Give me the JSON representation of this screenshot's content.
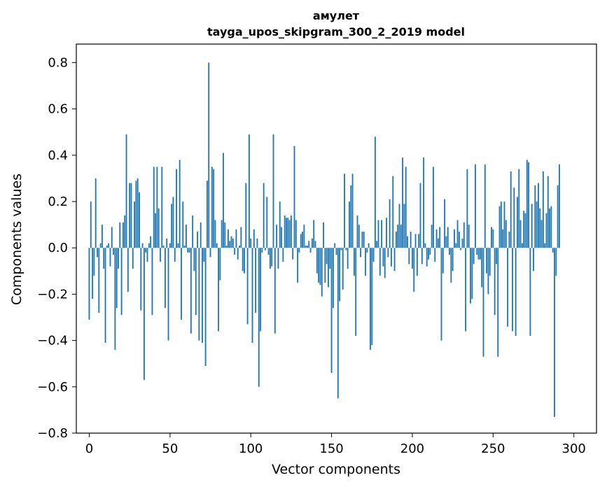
{
  "chart_data": {
    "type": "bar",
    "title": "амулет",
    "subtitle": "tayga_upos_skipgram_300_2_2019 model",
    "xlabel": "Vector components",
    "ylabel": "Components values",
    "xlim": [
      -8,
      314
    ],
    "ylim": [
      -0.8,
      0.88
    ],
    "xticks": [
      0,
      50,
      100,
      150,
      200,
      250,
      300
    ],
    "yticks": [
      -0.8,
      -0.6,
      -0.4,
      -0.2,
      0.0,
      0.2,
      0.4,
      0.6,
      0.8
    ],
    "ytick_labels": [
      "−0.8",
      "−0.6",
      "−0.4",
      "−0.2",
      "0.0",
      "0.2",
      "0.4",
      "0.6",
      "0.8"
    ],
    "bar_color": "#1f77b4",
    "grid": false,
    "values": [
      -0.31,
      0.2,
      -0.22,
      -0.12,
      0.3,
      -0.04,
      -0.28,
      0.02,
      0.1,
      -0.09,
      -0.41,
      0.01,
      0.02,
      -0.08,
      0.09,
      -0.03,
      -0.44,
      -0.26,
      -0.09,
      0.11,
      -0.29,
      0.11,
      0.14,
      0.49,
      -0.19,
      0.28,
      0.28,
      -0.09,
      0.2,
      0.29,
      0.3,
      0.24,
      -0.27,
      0.02,
      -0.57,
      -0.02,
      -0.06,
      0.02,
      0.05,
      -0.29,
      0.35,
      0.15,
      0.35,
      0.17,
      -0.06,
      0.35,
      0.01,
      -0.26,
      0.04,
      -0.4,
      0.02,
      0.19,
      0.22,
      -0.06,
      0.34,
      0.02,
      0.38,
      -0.31,
      0.2,
      0.01,
      0.1,
      -0.02,
      -0.02,
      -0.37,
      0.14,
      -0.1,
      -0.29,
      0.07,
      -0.4,
      0.11,
      -0.41,
      -0.06,
      -0.51,
      0.29,
      0.8,
      -0.04,
      0.35,
      0.34,
      0.12,
      0.02,
      -0.36,
      -0.14,
      0.12,
      0.41,
      0.11,
      0.01,
      0.08,
      0.03,
      0.05,
      0.04,
      -0.03,
      0.08,
      -0.05,
      0.01,
      0.09,
      -0.1,
      -0.11,
      0.28,
      -0.33,
      0.49,
      0.04,
      -0.41,
      0.08,
      -0.28,
      0.04,
      -0.6,
      -0.36,
      -0.02,
      0.28,
      -0.01,
      0.22,
      -0.03,
      -0.09,
      -0.08,
      0.49,
      -0.37,
      0.1,
      -0.09,
      0.2,
      0.09,
      -0.06,
      0.14,
      0.13,
      0.13,
      0.12,
      0.14,
      -0.05,
      0.44,
      0.12,
      -0.15,
      -0.02,
      0.06,
      0.07,
      0.1,
      0.01,
      0.01,
      0.03,
      -0.02,
      0.04,
      0.12,
      0.03,
      -0.11,
      -0.15,
      -0.16,
      -0.21,
      0.11,
      -0.15,
      -0.07,
      -0.17,
      -0.09,
      -0.54,
      -0.26,
      0.02,
      -0.03,
      -0.65,
      -0.23,
      -0.01,
      -0.18,
      0.32,
      -0.01,
      -0.09,
      0.2,
      0.27,
      0.32,
      -0.12,
      -0.38,
      0.14,
      0.1,
      -0.04,
      0.07,
      0.07,
      -0.12,
      -0.02,
      0.02,
      -0.44,
      -0.42,
      -0.06,
      0.48,
      0.03,
      0.12,
      -0.12,
      0.12,
      -0.08,
      -0.13,
      0.13,
      -0.04,
      0.21,
      -0.08,
      0.31,
      -0.1,
      0.07,
      0.1,
      0.19,
      0.1,
      0.39,
      0.19,
      0.35,
      0.05,
      -0.07,
      0.07,
      -0.09,
      -0.19,
      0.06,
      -0.12,
      0.06,
      0.28,
      -0.07,
      0.39,
      0.02,
      -0.08,
      -0.05,
      -0.03,
      0.1,
      0.35,
      -0.06,
      0.08,
      0.04,
      0.09,
      -0.4,
      -0.11,
      0.21,
      0.05,
      0.09,
      -0.03,
      -0.15,
      -0.1,
      0.08,
      0.02,
      0.12,
      0.07,
      -0.01,
      0.04,
      0.11,
      -0.36,
      0.34,
      0.1,
      -0.24,
      -0.22,
      -0.07,
      0.36,
      -0.03,
      -0.05,
      -0.05,
      -0.17,
      -0.47,
      0.36,
      -0.11,
      -0.2,
      -0.12,
      0.09,
      0.08,
      -0.29,
      -0.07,
      -0.47,
      0.18,
      0.2,
      0.08,
      0.2,
      0.12,
      -0.34,
      0.07,
      0.33,
      -0.36,
      0.26,
      -0.38,
      0.22,
      0.34,
      0.12,
      0.02,
      0.16,
      0.15,
      0.38,
      0.37,
      -0.38,
      0.19,
      -0.1,
      0.27,
      0.2,
      0.28,
      0.17,
      0.12,
      0.33,
      0.02,
      0.15,
      0.31,
      0.17,
      0.18,
      -0.02,
      -0.73,
      -0.12,
      0.27,
      0.36
    ]
  }
}
